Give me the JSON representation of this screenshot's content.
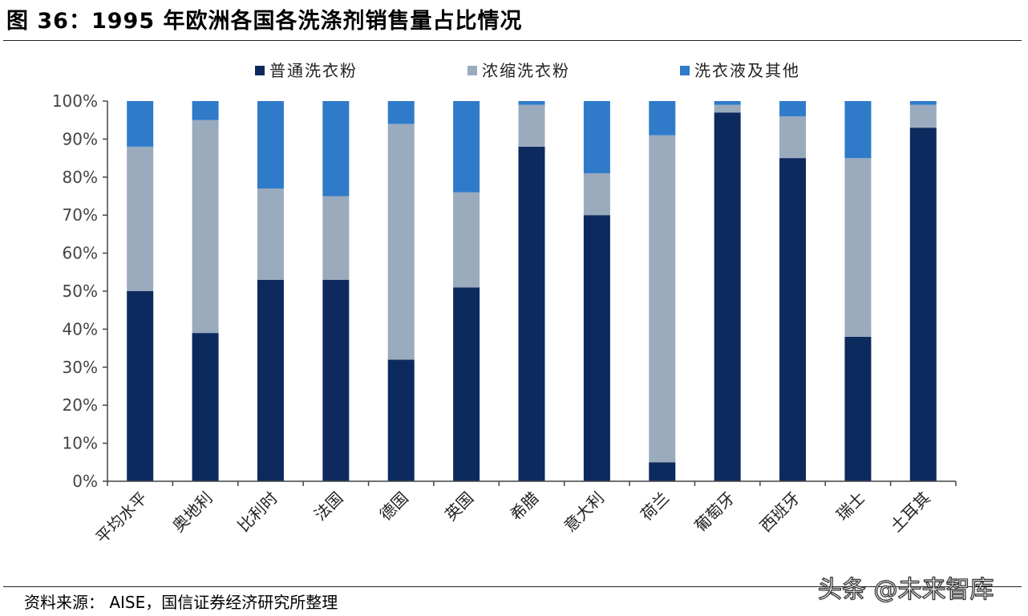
{
  "title": "图 36：1995 年欧洲各国各洗涤剂销售量占比情况",
  "source": "资料来源：  AISE，国信证券经济研究所整理",
  "watermark": "头条 @未来智库",
  "colors": {
    "regular": "#0d2a5e",
    "concentrated": "#9aabbd",
    "liquid": "#2f7bc9",
    "axis": "#444444"
  },
  "chart_data": {
    "type": "bar",
    "stacked": true,
    "categories": [
      "平均水平",
      "奥地利",
      "比利时",
      "法国",
      "德国",
      "英国",
      "希腊",
      "意大利",
      "荷兰",
      "葡萄牙",
      "西班牙",
      "瑞士",
      "土耳其"
    ],
    "series": [
      {
        "name": "普通洗衣粉",
        "values": [
          50,
          39,
          53,
          53,
          32,
          51,
          88,
          70,
          5,
          97,
          85,
          38,
          93
        ]
      },
      {
        "name": "浓缩洗衣粉",
        "values": [
          38,
          56,
          24,
          22,
          62,
          25,
          11,
          11,
          86,
          2,
          11,
          47,
          6
        ]
      },
      {
        "name": "洗衣液及其他",
        "values": [
          12,
          5,
          23,
          25,
          6,
          24,
          1,
          19,
          9,
          1,
          4,
          15,
          1
        ]
      }
    ],
    "ylim": [
      0,
      100
    ],
    "yticks": [
      "0%",
      "10%",
      "20%",
      "30%",
      "40%",
      "50%",
      "60%",
      "70%",
      "80%",
      "90%",
      "100%"
    ],
    "legend_position": "top",
    "grid": false
  }
}
